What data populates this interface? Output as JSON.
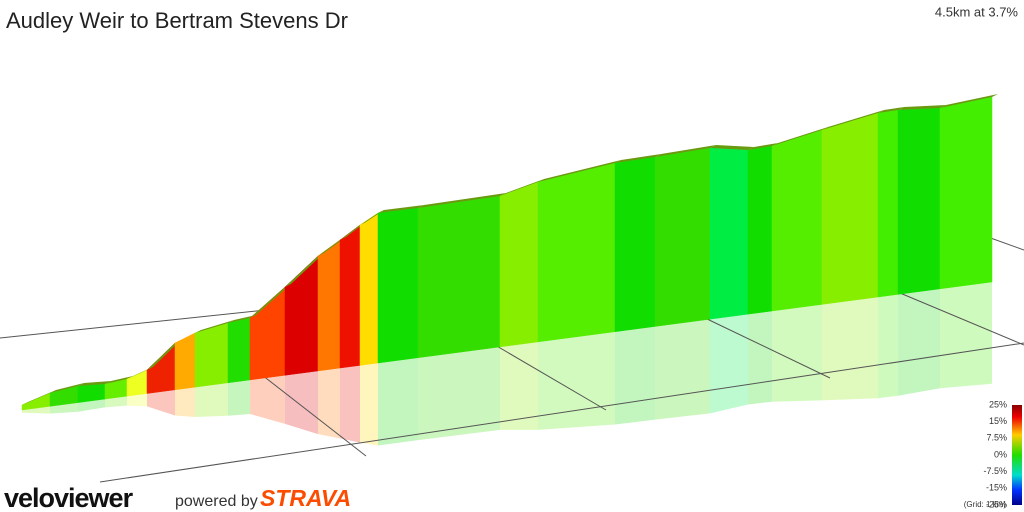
{
  "header": {
    "title": "Audley Weir to Bertram Stevens Dr",
    "summary": "4.5km at 3.7%"
  },
  "legend": {
    "labels": [
      "25%",
      "15%",
      "7.5%",
      "0%",
      "-7.5%",
      "-15%",
      "-25%"
    ],
    "grid_note": "(Grid: 1 km)"
  },
  "footer": {
    "brand": "veloviewer",
    "powered": "powered by",
    "partner": "STRAVA"
  }
}
